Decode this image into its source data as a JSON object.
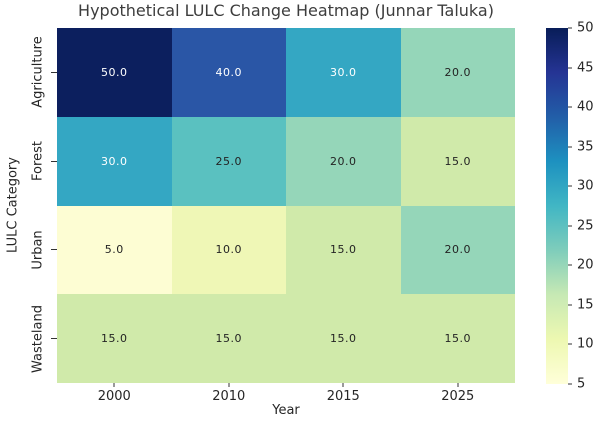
{
  "title": "Hypothetical LULC Change Heatmap (Junnar Taluka)",
  "chart_data": {
    "type": "heatmap",
    "title": "Hypothetical LULC Change Heatmap (Junnar Taluka)",
    "xlabel": "Year",
    "ylabel": "LULC Category",
    "columns": [
      "2000",
      "2010",
      "2015",
      "2025"
    ],
    "rows": [
      "Agriculture",
      "Forest",
      "Urban",
      "Wasteland"
    ],
    "values": [
      [
        50.0,
        40.0,
        30.0,
        20.0
      ],
      [
        30.0,
        25.0,
        20.0,
        15.0
      ],
      [
        5.0,
        10.0,
        15.0,
        20.0
      ],
      [
        15.0,
        15.0,
        15.0,
        15.0
      ]
    ],
    "annotation_decimals": 1,
    "colormap": "YlGnBu",
    "cell_colors": {
      "5": "#fdfdd3",
      "10": "#eff7b6",
      "15": "#d0eaaa",
      "20": "#95d6b9",
      "25": "#5ac1c0",
      "30": "#34a7c3",
      "40": "#2a56a6",
      "50": "#0c1f5e"
    },
    "light_text_values": [
      30,
      40,
      50
    ],
    "text_colors": {
      "light": "#ffffff",
      "dark": "#232323"
    },
    "colorbar": {
      "min": 5,
      "max": 50,
      "ticks": [
        5,
        10,
        15,
        20,
        25,
        30,
        35,
        40,
        45,
        50
      ],
      "gradient_stops": [
        {
          "pos": 0,
          "color": "#081d58"
        },
        {
          "pos": 12.5,
          "color": "#253494"
        },
        {
          "pos": 25,
          "color": "#225ea8"
        },
        {
          "pos": 37.5,
          "color": "#1d91c0"
        },
        {
          "pos": 50,
          "color": "#41b6c4"
        },
        {
          "pos": 62.5,
          "color": "#7fcdbb"
        },
        {
          "pos": 75,
          "color": "#c7e9b4"
        },
        {
          "pos": 87.5,
          "color": "#edf8b1"
        },
        {
          "pos": 100,
          "color": "#ffffd9"
        }
      ]
    },
    "grid": false,
    "legend_position": "right-colorbar"
  }
}
